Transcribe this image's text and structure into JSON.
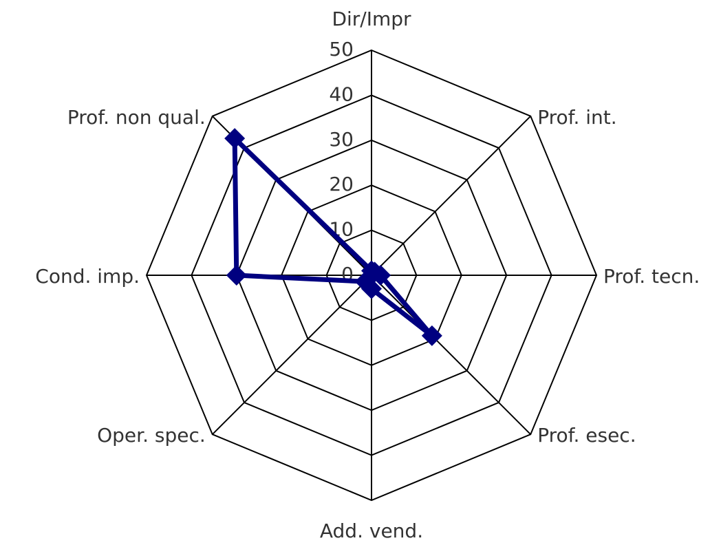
{
  "chart_data": {
    "type": "radar",
    "categories": [
      "Dir/Impr",
      "Prof. int.",
      "Prof. tecn.",
      "Prof. esec.",
      "Add. vend.",
      "Oper. spec.",
      "Cond. imp.",
      "Prof. non qual."
    ],
    "values": [
      1,
      1,
      2,
      19,
      3,
      2,
      30,
      43
    ],
    "color": "#000080",
    "ylim": [
      0,
      50
    ],
    "yticks": [
      0,
      10,
      20,
      30,
      40,
      50
    ],
    "grid": true
  }
}
